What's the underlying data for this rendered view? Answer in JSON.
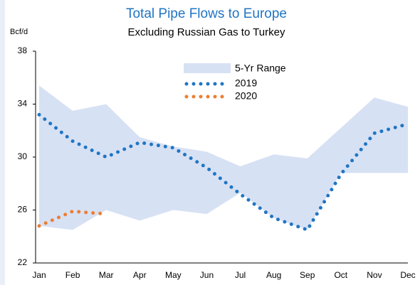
{
  "chart_data": {
    "type": "line",
    "title": "Total Pipe Flows to Europe",
    "subtitle": "Excluding Russian Gas to Turkey",
    "y_label": "Bcf/d",
    "categories": [
      "Jan",
      "Feb",
      "Mar",
      "Apr",
      "May",
      "Jun",
      "Jul",
      "Aug",
      "Sep",
      "Oct",
      "Nov",
      "Dec"
    ],
    "range": {
      "name": "5-Yr Range",
      "color": "#d7e1f4",
      "high": [
        35.4,
        33.5,
        34.0,
        31.5,
        30.8,
        30.4,
        29.3,
        30.2,
        29.9,
        32.2,
        34.5,
        33.8
      ],
      "low": [
        24.8,
        24.5,
        26.0,
        25.2,
        26.0,
        25.7,
        27.3,
        25.4,
        24.5,
        28.8,
        28.8,
        28.8
      ]
    },
    "series": [
      {
        "name": "2019",
        "color": "#1f75c4",
        "values": [
          33.2,
          31.2,
          30.0,
          31.1,
          30.7,
          29.2,
          27.2,
          25.4,
          24.5,
          28.7,
          31.8,
          32.5
        ]
      },
      {
        "name": "2020",
        "color": "#ed7d31",
        "values": [
          24.8,
          25.9,
          25.7,
          null,
          null,
          null,
          null,
          null,
          null,
          null,
          null,
          null
        ]
      }
    ],
    "ylim": [
      22,
      38
    ],
    "yticks": [
      22,
      26,
      30,
      34,
      38
    ],
    "grid": false
  }
}
